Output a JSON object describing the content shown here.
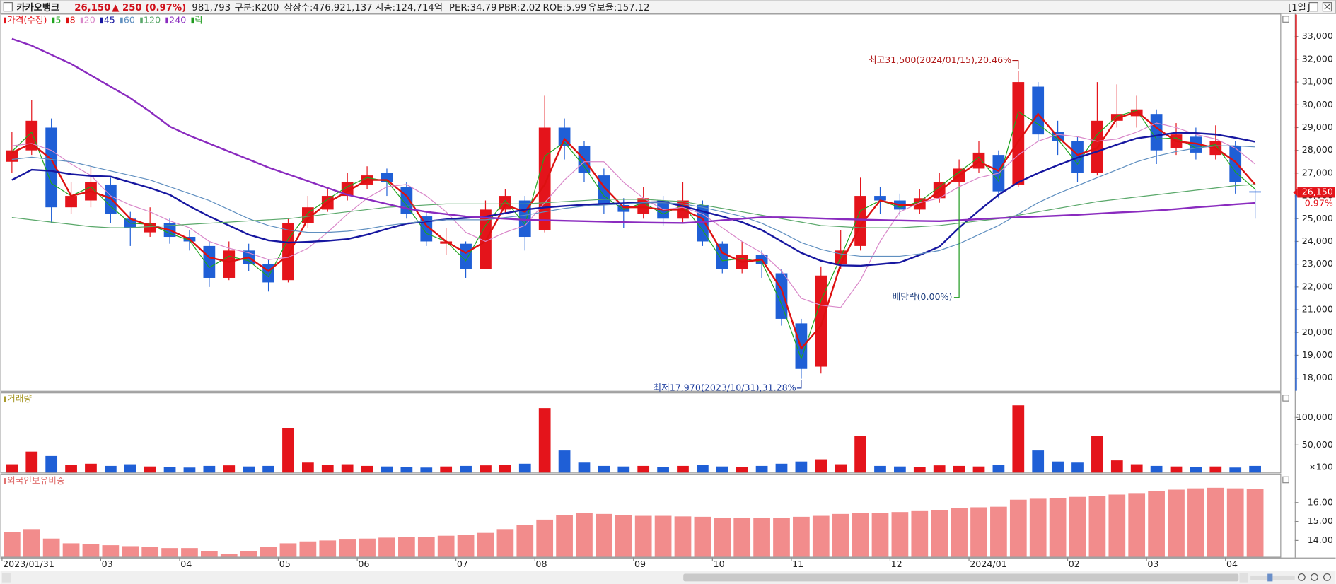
{
  "header": {
    "name": "카카오뱅크",
    "price": "26,150",
    "change": "▲ 250",
    "change_pct": "(0.97%)",
    "volume": "981,793",
    "category": "구분:K200",
    "listed": "상장수:476,921,137",
    "market_cap": "시총:124,714억",
    "per": "PER:34.79",
    "pbr": "PBR:2.02",
    "roe": "ROE:5.99",
    "reserve": "유보율:157.12",
    "period": "[1일]"
  },
  "chart_data": [
    {
      "type": "candlestick",
      "legend_title": "가격(수정)",
      "up_color": "#e4141b",
      "down_color": "#1f5fd6",
      "open": [
        27500,
        28000,
        29000,
        25500,
        25800,
        26500,
        25000,
        24400,
        24800,
        24200,
        23800,
        22400,
        23600,
        23000,
        22300,
        24800,
        25400,
        26000,
        26500,
        27000,
        26400,
        25100,
        23900,
        23900,
        22800,
        25400,
        25800,
        24500,
        29000,
        28200,
        26900,
        25600,
        25200,
        25800,
        25000,
        25600,
        23900,
        22800,
        23400,
        22600,
        20400,
        18500,
        23000,
        23800,
        26000,
        25800,
        25400,
        25900,
        26600,
        27200,
        27800,
        26500,
        30800,
        28800,
        28400,
        27000,
        29300,
        29500,
        29600,
        28100,
        28600,
        27800,
        28200,
        26200
      ],
      "high": [
        28800,
        30200,
        29400,
        26600,
        27300,
        26800,
        25300,
        25500,
        25000,
        24500,
        24000,
        24000,
        23900,
        23200,
        25000,
        26000,
        26400,
        27000,
        27300,
        27200,
        26600,
        25300,
        24600,
        24000,
        25800,
        26300,
        26000,
        30400,
        29400,
        28400,
        27200,
        25900,
        26400,
        26000,
        26600,
        25800,
        24000,
        24000,
        23600,
        22800,
        20600,
        22900,
        24500,
        26800,
        26400,
        26100,
        26300,
        27000,
        27600,
        28400,
        28000,
        31500,
        31000,
        29300,
        28600,
        31000,
        30900,
        30400,
        29800,
        29200,
        29000,
        29100,
        28400,
        26300
      ],
      "low": [
        27000,
        27800,
        24800,
        25200,
        25500,
        24800,
        23800,
        24200,
        23900,
        23600,
        22000,
        22300,
        22700,
        21800,
        22200,
        24600,
        25300,
        25800,
        26300,
        26000,
        25000,
        23800,
        23400,
        22400,
        22800,
        25200,
        23600,
        24400,
        27600,
        26600,
        25200,
        24600,
        25000,
        24700,
        24800,
        23800,
        22600,
        22600,
        22400,
        20300,
        17970,
        18200,
        22800,
        23600,
        25200,
        25100,
        25200,
        25700,
        26400,
        27000,
        25900,
        26400,
        28400,
        27800,
        26600,
        26900,
        29000,
        29000,
        27400,
        27800,
        27600,
        27600,
        26100,
        25000
      ],
      "close": [
        28000,
        29300,
        25500,
        26000,
        26600,
        25200,
        24600,
        24800,
        24200,
        24000,
        22400,
        23600,
        23000,
        22200,
        24800,
        25500,
        26000,
        26600,
        26900,
        26600,
        25200,
        24000,
        24000,
        22800,
        25400,
        26000,
        24200,
        29000,
        28200,
        27000,
        25600,
        25300,
        25900,
        25000,
        25800,
        24000,
        22800,
        23400,
        23000,
        20600,
        18400,
        22500,
        23600,
        26000,
        25800,
        25400,
        25900,
        26600,
        27200,
        27900,
        26200,
        31000,
        28700,
        28400,
        27000,
        29300,
        29600,
        29800,
        28000,
        28700,
        27900,
        28400,
        26600,
        26150
      ],
      "series": [
        {
          "name": "5",
          "color": "#1fa51f",
          "width": 1,
          "values": [
            27950,
            28800,
            26550,
            26000,
            26400,
            25550,
            24800,
            24750,
            24350,
            24050,
            22850,
            23350,
            23150,
            22450,
            24100,
            25250,
            25850,
            26400,
            26800,
            26650,
            25600,
            24350,
            24000,
            23150,
            24700,
            25800,
            24750,
            27750,
            28350,
            27300,
            26000,
            25400,
            25700,
            25200,
            25600,
            24500,
            23150,
            23250,
            23100,
            21250,
            18850,
            21400,
            23300,
            25350,
            25800,
            25500,
            25750,
            26400,
            27050,
            27700,
            26650,
            29700,
            29150,
            28500,
            27400,
            28700,
            29500,
            29750,
            28500,
            28550,
            28100,
            28250,
            27050,
            26300
          ]
        },
        {
          "name": "8",
          "color": "#dd1111",
          "width": 2,
          "values": [
            27900,
            28300,
            27600,
            26000,
            26200,
            25900,
            25000,
            24700,
            24500,
            24100,
            23300,
            23100,
            23300,
            22700,
            23400,
            25000,
            25700,
            26200,
            26700,
            26700,
            26000,
            24700,
            24000,
            23500,
            24000,
            25600,
            25300,
            26500,
            28500,
            27600,
            26400,
            25500,
            25500,
            25400,
            25400,
            25000,
            23500,
            23100,
            23200,
            21900,
            19300,
            20300,
            23000,
            24700,
            25800,
            25600,
            25600,
            26200,
            26900,
            27500,
            27100,
            28400,
            29600,
            28600,
            27800,
            28100,
            29400,
            29700,
            29000,
            28400,
            28300,
            28100,
            27500,
            26500
          ]
        },
        {
          "name": "20",
          "color": "#d987c9",
          "width": 1,
          "values": [
            28200,
            28300,
            28000,
            27400,
            26900,
            26000,
            25600,
            25300,
            24900,
            24600,
            24000,
            23700,
            23500,
            23200,
            23300,
            23700,
            24400,
            25200,
            25900,
            26400,
            26500,
            26000,
            25300,
            24400,
            24000,
            24400,
            24700,
            25700,
            26700,
            27500,
            27500,
            26600,
            25900,
            25400,
            25500,
            25200,
            24600,
            24000,
            23500,
            22700,
            21500,
            21200,
            21100,
            22300,
            24000,
            25300,
            25700,
            25900,
            26400,
            26800,
            27000,
            27800,
            28400,
            28700,
            28600,
            28400,
            28500,
            28800,
            29200,
            29000,
            28700,
            28500,
            28100,
            27400
          ]
        },
        {
          "name": "45",
          "color": "#1717a0",
          "width": 2,
          "values": [
            26700,
            27150,
            27100,
            26950,
            26880,
            26850,
            26600,
            26350,
            26050,
            25550,
            25100,
            24700,
            24300,
            24050,
            23950,
            23980,
            24030,
            24100,
            24300,
            24550,
            24780,
            24880,
            24970,
            25030,
            25090,
            25240,
            25400,
            25490,
            25560,
            25610,
            25650,
            25680,
            25710,
            25740,
            25550,
            25320,
            25100,
            24850,
            24500,
            24000,
            23500,
            23150,
            22950,
            22930,
            23000,
            23080,
            23400,
            23770,
            24600,
            25350,
            26050,
            26600,
            27000,
            27350,
            27680,
            27950,
            28250,
            28530,
            28650,
            28780,
            28760,
            28700,
            28550,
            28380
          ]
        },
        {
          "name": "60",
          "color": "#5f8fc0",
          "width": 1,
          "values": [
            27600,
            27700,
            27600,
            27500,
            27300,
            27100,
            26900,
            26700,
            26400,
            26100,
            25800,
            25400,
            25000,
            24700,
            24500,
            24400,
            24400,
            24450,
            24550,
            24700,
            24800,
            24900,
            24950,
            24950,
            24950,
            25050,
            25150,
            25300,
            25450,
            25550,
            25600,
            25650,
            25700,
            25700,
            25650,
            25500,
            25300,
            25100,
            24800,
            24400,
            23950,
            23650,
            23450,
            23350,
            23350,
            23350,
            23450,
            23600,
            23900,
            24300,
            24700,
            25200,
            25700,
            26100,
            26450,
            26800,
            27150,
            27500,
            27750,
            27950,
            28100,
            28200,
            28200,
            28150
          ]
        },
        {
          "name": "120",
          "color": "#5aa86a",
          "width": 1,
          "values": [
            25050,
            24950,
            24850,
            24750,
            24650,
            24600,
            24600,
            24650,
            24700,
            24750,
            24800,
            24850,
            24900,
            24950,
            25000,
            25100,
            25200,
            25300,
            25400,
            25500,
            25550,
            25600,
            25650,
            25650,
            25650,
            25650,
            25650,
            25700,
            25750,
            25800,
            25850,
            25850,
            25850,
            25800,
            25750,
            25600,
            25450,
            25300,
            25150,
            25000,
            24850,
            24700,
            24650,
            24600,
            24600,
            24600,
            24650,
            24700,
            24800,
            24900,
            25000,
            25150,
            25300,
            25450,
            25600,
            25750,
            25850,
            25950,
            26050,
            26150,
            26250,
            26350,
            26450,
            26500
          ]
        },
        {
          "name": "240",
          "color": "#8a2bbf",
          "width": 2,
          "values": [
            32900,
            32600,
            32200,
            31800,
            31300,
            30800,
            30300,
            29700,
            29050,
            28650,
            28300,
            27950,
            27600,
            27250,
            26950,
            26650,
            26350,
            26050,
            25850,
            25650,
            25450,
            25300,
            25200,
            25100,
            25050,
            25000,
            24950,
            24930,
            24910,
            24890,
            24870,
            24850,
            24830,
            24820,
            24810,
            24860,
            24930,
            25000,
            25060,
            25060,
            25040,
            25010,
            24980,
            24960,
            24940,
            24920,
            24900,
            24890,
            24930,
            24980,
            25020,
            25060,
            25090,
            25130,
            25170,
            25220,
            25270,
            25310,
            25360,
            25420,
            25500,
            25560,
            25630,
            25690
          ]
        }
      ],
      "ex_dividend_legend": "락",
      "ex_dividend_color": "#1e9a1e",
      "annotations": {
        "high": "최고31,500(2024/01/15),20.46%",
        "low": "최저17,970(2023/10/31),31.28%",
        "ex_dividend": "배당락(0.00%)"
      },
      "last_price_label": "26,150",
      "change_label": "0.97%",
      "ylim": [
        17440,
        33970
      ],
      "yticks": [
        {
          "value": 18000,
          "label": "18,000"
        },
        {
          "value": 19000,
          "label": "19,000"
        },
        {
          "value": 20000,
          "label": "20,000"
        },
        {
          "value": 21000,
          "label": "21,000"
        },
        {
          "value": 22000,
          "label": "22,000"
        },
        {
          "value": 23000,
          "label": "23,000"
        },
        {
          "value": 24000,
          "label": "24,000"
        },
        {
          "value": 25000,
          "label": "25,000"
        },
        {
          "value": 26000,
          "label": "26,000"
        },
        {
          "value": 27000,
          "label": "27,000"
        },
        {
          "value": 28000,
          "label": "28,000"
        },
        {
          "value": 29000,
          "label": "29,000"
        },
        {
          "value": 30000,
          "label": "30,000"
        },
        {
          "value": 31000,
          "label": "31,000"
        },
        {
          "value": 32000,
          "label": "32,000"
        },
        {
          "value": 33000,
          "label": "33,000"
        }
      ]
    },
    {
      "type": "bar",
      "title": "거래량",
      "title_color": "#a99a2c",
      "unit_label": "×100",
      "values": [
        15000,
        38000,
        30000,
        14000,
        16000,
        12000,
        15000,
        11000,
        10000,
        9000,
        12000,
        13000,
        11000,
        12000,
        81000,
        18000,
        14000,
        15000,
        12000,
        11000,
        10000,
        9000,
        11000,
        12000,
        13000,
        14000,
        16000,
        117000,
        40000,
        18000,
        12000,
        11000,
        12000,
        10000,
        12000,
        14000,
        11000,
        10000,
        12000,
        16000,
        20000,
        24000,
        15000,
        66000,
        12000,
        11000,
        10000,
        13000,
        12000,
        11000,
        14000,
        122000,
        40000,
        20000,
        18000,
        66000,
        22000,
        15000,
        12000,
        11000,
        10000,
        11000,
        9000,
        12000
      ],
      "ylim": [
        0,
        143750
      ],
      "yticks": [
        {
          "value": 50000,
          "label": "50,000"
        },
        {
          "value": 100000,
          "label": "100,000"
        }
      ]
    },
    {
      "type": "bar",
      "title": "외국인보유비중",
      "title_color": "#e0706f",
      "color": "#f28c8c",
      "categories": [
        "2023/01/31",
        null,
        null,
        null,
        null,
        "03",
        null,
        null,
        null,
        "04",
        null,
        null,
        null,
        null,
        "05",
        null,
        null,
        null,
        "06",
        null,
        null,
        null,
        null,
        "07",
        null,
        null,
        null,
        "08",
        null,
        null,
        null,
        null,
        "09",
        null,
        null,
        null,
        "10",
        null,
        null,
        null,
        "11",
        null,
        null,
        null,
        null,
        "12",
        null,
        null,
        null,
        "2024/01",
        null,
        null,
        null,
        null,
        "02",
        null,
        null,
        null,
        "03",
        null,
        null,
        null,
        "04",
        null
      ],
      "values": [
        14.45,
        14.6,
        14.1,
        13.85,
        13.8,
        13.75,
        13.7,
        13.65,
        13.6,
        13.6,
        13.45,
        13.3,
        13.45,
        13.65,
        13.85,
        13.95,
        14.0,
        14.05,
        14.1,
        14.15,
        14.2,
        14.2,
        14.25,
        14.3,
        14.4,
        14.6,
        14.8,
        15.1,
        15.35,
        15.45,
        15.4,
        15.35,
        15.3,
        15.3,
        15.27,
        15.25,
        15.2,
        15.2,
        15.18,
        15.2,
        15.25,
        15.3,
        15.4,
        15.45,
        15.45,
        15.5,
        15.55,
        15.6,
        15.7,
        15.75,
        15.78,
        16.15,
        16.2,
        16.25,
        16.3,
        16.36,
        16.42,
        16.5,
        16.6,
        16.68,
        16.75,
        16.78,
        16.75,
        16.73
      ],
      "ylim": [
        13.14,
        17.45
      ],
      "yticks": [
        {
          "value": 14,
          "label": "14.00"
        },
        {
          "value": 15,
          "label": "15.00"
        },
        {
          "value": 16,
          "label": "16.00"
        }
      ]
    }
  ]
}
